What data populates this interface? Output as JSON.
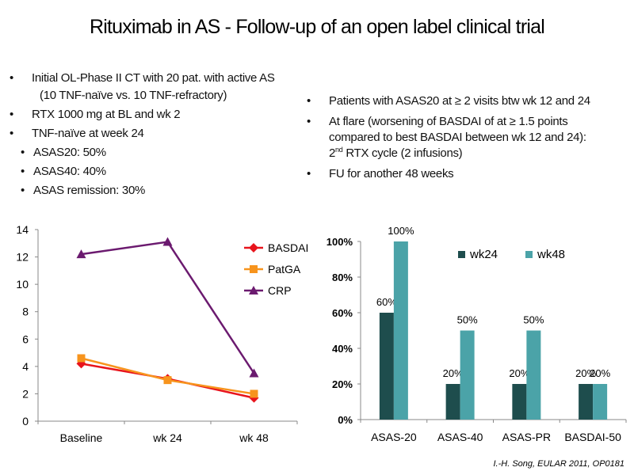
{
  "title": "Rituximab in AS - Follow-up of an open label clinical trial",
  "left_bullets": {
    "b1": "Initial OL-Phase II CT with 20 pat. with active AS",
    "b1_cont": "(10 TNF-naïve vs. 10 TNF-refractory)",
    "b2": "RTX 1000 mg at BL and wk 2",
    "b3": "TNF-naïve at week 24",
    "sub": [
      "ASAS20: 50%",
      "ASAS40: 40%",
      "ASAS remission: 30%"
    ]
  },
  "right_bullets": {
    "b1": "Patients with ASAS20 at ≥ 2 visits btw wk 12 and 24",
    "b2_line1": "At flare (worsening of BASDAI of at ≥ 1.5 points",
    "b2_line2": "compared to best BASDAI between wk 12 and 24):",
    "b2_line3_pre": "2",
    "b2_line3_sup": "nd",
    "b2_line3_post": " RTX cycle (2 infusions)",
    "b3": "FU for another 48 weeks"
  },
  "colors": {
    "basdai": "#e8141c",
    "patga": "#f7941d",
    "crp": "#6b1a6f",
    "wk24": "#1e4d4d",
    "wk48": "#4ba3a8"
  },
  "chart_data": [
    {
      "type": "line",
      "x": [
        "Baseline",
        "wk 24",
        "wk 48"
      ],
      "ylim": [
        0,
        14
      ],
      "yticks": [
        0,
        2,
        4,
        6,
        8,
        10,
        12,
        14
      ],
      "legend_position": "top-right",
      "series": [
        {
          "name": "BASDAI",
          "values": [
            4.2,
            3.1,
            1.7
          ]
        },
        {
          "name": "PatGA",
          "values": [
            4.6,
            3.0,
            2.0
          ]
        },
        {
          "name": "CRP",
          "values": [
            12.2,
            13.1,
            3.5
          ]
        }
      ]
    },
    {
      "type": "bar",
      "categories": [
        "ASAS-20",
        "ASAS-40",
        "ASAS-PR",
        "BASDAI-50"
      ],
      "ylim": [
        0,
        100
      ],
      "yticks": [
        "0%",
        "20%",
        "40%",
        "60%",
        "80%",
        "100%"
      ],
      "legend_position": "top-right",
      "series": [
        {
          "name": "wk24",
          "values": [
            60,
            20,
            20,
            20
          ],
          "labels": [
            "60%",
            "20%",
            "20%",
            "20%"
          ]
        },
        {
          "name": "wk48",
          "values": [
            100,
            50,
            50,
            20
          ],
          "labels": [
            "100%",
            "50%",
            "50%",
            "20%"
          ]
        }
      ]
    }
  ],
  "citation": "I.-H. Song, EULAR 2011, OP0181"
}
